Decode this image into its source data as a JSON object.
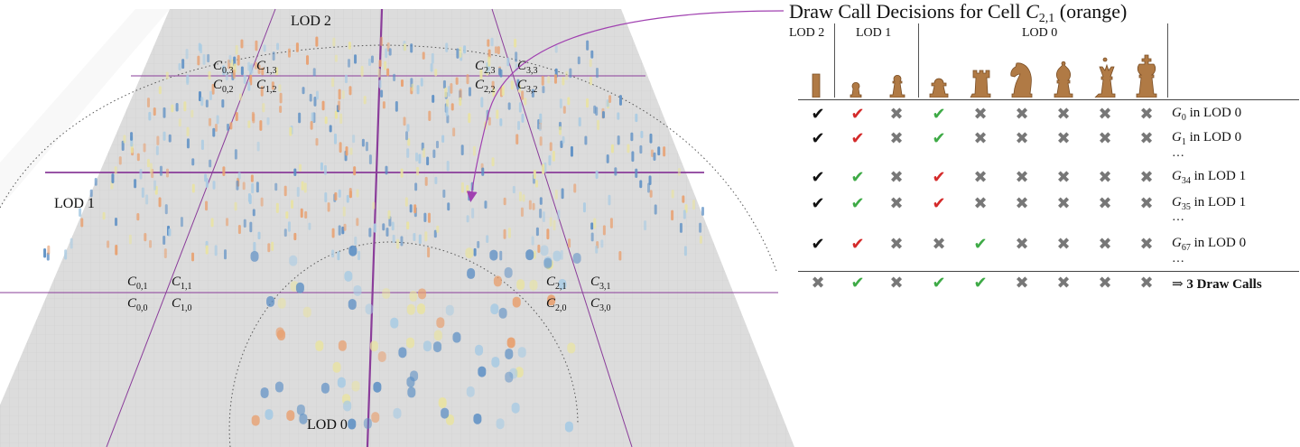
{
  "scene": {
    "lod_labels": {
      "lod2": "LOD 2",
      "lod1": "LOD 1",
      "lod0": "LOD 0"
    },
    "cells": [
      {
        "name": "C0,3",
        "base": "C",
        "sub": "0,3"
      },
      {
        "name": "C1,3",
        "base": "C",
        "sub": "1,3"
      },
      {
        "name": "C0,2",
        "base": "C",
        "sub": "0,2"
      },
      {
        "name": "C1,2",
        "base": "C",
        "sub": "1,2"
      },
      {
        "name": "C2,3",
        "base": "C",
        "sub": "2,3"
      },
      {
        "name": "C3,3",
        "base": "C",
        "sub": "3,3"
      },
      {
        "name": "C2,2",
        "base": "C",
        "sub": "2,2"
      },
      {
        "name": "C3,2",
        "base": "C",
        "sub": "3,2"
      },
      {
        "name": "C0,1",
        "base": "C",
        "sub": "0,1"
      },
      {
        "name": "C1,1",
        "base": "C",
        "sub": "1,1"
      },
      {
        "name": "C0,0",
        "base": "C",
        "sub": "0,0"
      },
      {
        "name": "C1,0",
        "base": "C",
        "sub": "1,0"
      },
      {
        "name": "C2,1",
        "base": "C",
        "sub": "2,1"
      },
      {
        "name": "C3,1",
        "base": "C",
        "sub": "3,1"
      },
      {
        "name": "C2,0",
        "base": "C",
        "sub": "2,0"
      },
      {
        "name": "C3,0",
        "base": "C",
        "sub": "3,0"
      }
    ],
    "colors": {
      "ground": "#dcdcdc",
      "grid_major": "#8a3c9a",
      "blue": "#5b8ec4",
      "orange": "#e8a070",
      "yellow": "#e9e3a0",
      "lightblue": "#a9cbe3",
      "arrow": "#a040b0"
    }
  },
  "panel": {
    "title_prefix": "Draw Call Decisions for Cell ",
    "title_symbol": "C",
    "title_sub": "2,1",
    "title_suffix": " (orange)",
    "headers": {
      "lod2": "LOD 2",
      "lod1": "LOD 1",
      "lod0": "LOD 0"
    },
    "pieces": [
      "lod2-bar",
      "lod1-pawn-small",
      "lod1-pawn",
      "pawn",
      "rook",
      "knight",
      "bishop",
      "queen",
      "king"
    ],
    "rows": [
      {
        "label_g": "G",
        "label_sub": "0",
        "label_rest": " in LOD 0",
        "marks": [
          "check-black",
          "check-red",
          "cross",
          "check-green",
          "cross",
          "cross",
          "cross",
          "cross",
          "cross"
        ]
      },
      {
        "label_g": "G",
        "label_sub": "1",
        "label_rest": " in LOD 0",
        "marks": [
          "check-black",
          "check-red",
          "cross",
          "check-green",
          "cross",
          "cross",
          "cross",
          "cross",
          "cross"
        ]
      },
      {
        "label_g": "G",
        "label_sub": "34",
        "label_rest": " in LOD 1",
        "marks": [
          "check-black",
          "check-green",
          "cross",
          "check-red",
          "cross",
          "cross",
          "cross",
          "cross",
          "cross"
        ]
      },
      {
        "label_g": "G",
        "label_sub": "35",
        "label_rest": " in LOD 1",
        "marks": [
          "check-black",
          "check-green",
          "cross",
          "check-red",
          "cross",
          "cross",
          "cross",
          "cross",
          "cross"
        ]
      },
      {
        "label_g": "G",
        "label_sub": "67",
        "label_rest": " in LOD 0",
        "marks": [
          "check-black",
          "check-red",
          "cross",
          "cross",
          "check-green",
          "cross",
          "cross",
          "cross",
          "cross"
        ]
      }
    ],
    "ellipsis": "…",
    "total_marks": [
      "cross",
      "check-green",
      "cross",
      "check-green",
      "check-green",
      "cross",
      "cross",
      "cross",
      "cross"
    ],
    "total_prefix": "⇒ ",
    "total_label": "3 Draw Calls"
  }
}
